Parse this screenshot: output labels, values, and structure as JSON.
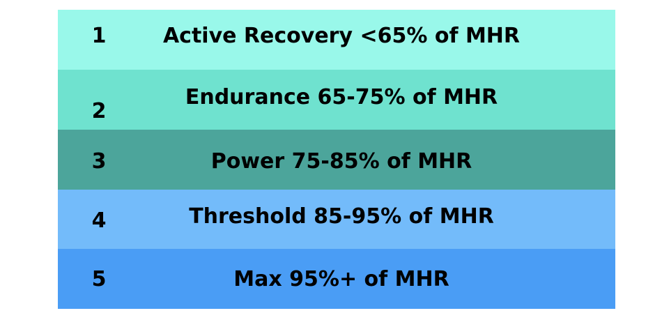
{
  "zones": [
    {
      "number": "1",
      "label": "Active Recovery <65% of MHR",
      "color": "#99F8EA"
    },
    {
      "number": "2",
      "label": "Endurance 65-75% of MHR",
      "color": "#6FE2CF"
    },
    {
      "number": "3",
      "label": "Power 75-85% of MHR",
      "color": "#4CA59B"
    },
    {
      "number": "4",
      "label": "Threshold 85-95% of MHR",
      "color": "#73BBFA"
    },
    {
      "number": "5",
      "label": "Max 95%+ of MHR",
      "color": "#4A9DF5"
    }
  ]
}
